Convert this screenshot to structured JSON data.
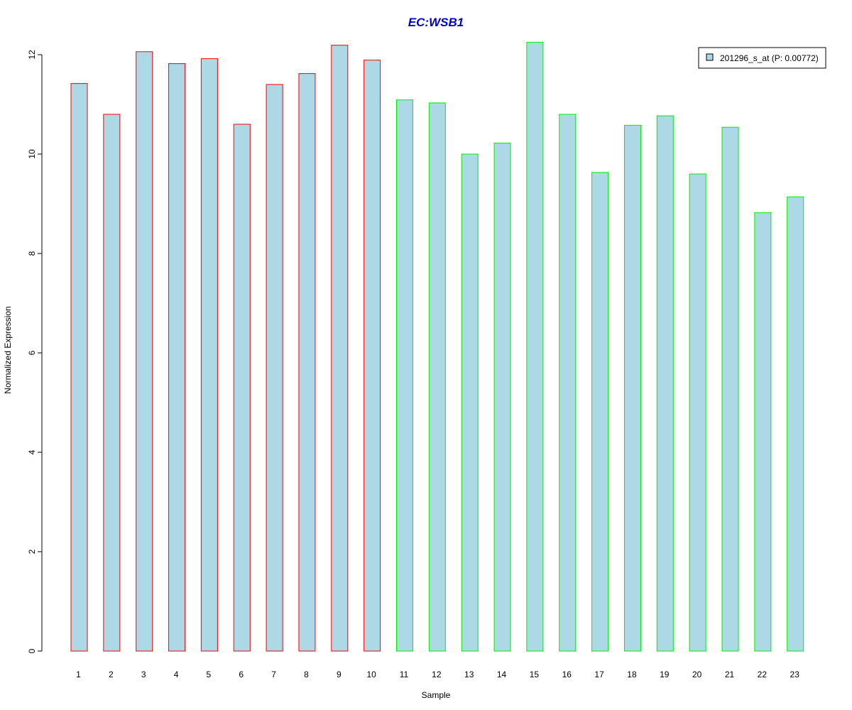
{
  "chart_data": {
    "type": "bar",
    "title": "EC:WSB1",
    "xlabel": "Sample",
    "ylabel": "Normalized Expression",
    "ylim": [
      0,
      12.3
    ],
    "yticks": [
      0,
      2,
      4,
      6,
      8,
      10,
      12
    ],
    "categories": [
      "1",
      "2",
      "3",
      "4",
      "5",
      "6",
      "7",
      "8",
      "9",
      "10",
      "11",
      "12",
      "13",
      "14",
      "15",
      "16",
      "17",
      "18",
      "19",
      "20",
      "21",
      "22",
      "23"
    ],
    "series": [
      {
        "name": "201296_s_at (P: 0.00772)",
        "values": [
          11.42,
          10.8,
          12.06,
          11.82,
          11.92,
          10.6,
          11.4,
          11.62,
          12.19,
          11.89,
          11.09,
          11.03,
          10.0,
          10.22,
          12.25,
          10.8,
          9.63,
          10.58,
          10.77,
          9.6,
          10.54,
          8.82,
          9.14
        ]
      }
    ],
    "group_colors": [
      "#ff0000",
      "#ff0000",
      "#ff0000",
      "#ff0000",
      "#ff0000",
      "#ff0000",
      "#ff0000",
      "#ff0000",
      "#ff0000",
      "#ff0000",
      "#00ee00",
      "#00ee00",
      "#00ee00",
      "#00ee00",
      "#00ee00",
      "#00ee00",
      "#00ee00",
      "#00ee00",
      "#00ee00",
      "#00ee00",
      "#00ee00",
      "#00ee00",
      "#00ee00"
    ],
    "bar_fill": "#add8e6",
    "title_color": "#0000cd",
    "grid": false,
    "legend_position": "top-right"
  }
}
